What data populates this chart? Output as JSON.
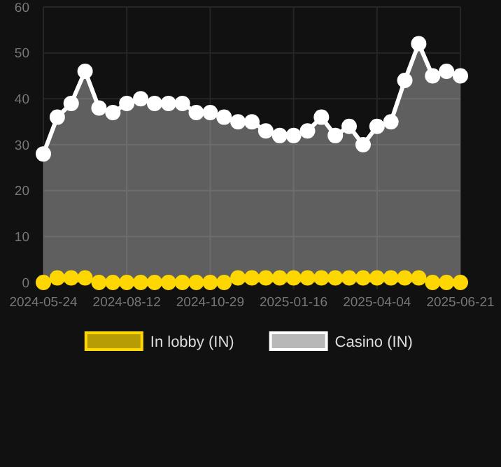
{
  "chart_data": {
    "type": "area",
    "categories": [
      "2024-05-24",
      null,
      null,
      null,
      null,
      null,
      "2024-08-12",
      null,
      null,
      null,
      null,
      null,
      "2024-10-29",
      null,
      null,
      null,
      null,
      null,
      "2025-01-16",
      null,
      null,
      null,
      null,
      null,
      "2025-04-04",
      null,
      null,
      null,
      null,
      null,
      "2025-06-21"
    ],
    "series": [
      {
        "name": "In lobby (IN)",
        "color": "#ffd700",
        "values": [
          0,
          1,
          1,
          1,
          0,
          0,
          0,
          0,
          0,
          0,
          0,
          0,
          0,
          0,
          1,
          1,
          1,
          1,
          1,
          1,
          1,
          1,
          1,
          1,
          1,
          1,
          1,
          1,
          0,
          0,
          0
        ]
      },
      {
        "name": "Casino (IN)",
        "color": "#ffffff",
        "values": [
          28,
          36,
          39,
          46,
          38,
          37,
          39,
          40,
          39,
          39,
          39,
          37,
          37,
          36,
          35,
          35,
          33,
          32,
          32,
          33,
          36,
          32,
          34,
          30,
          34,
          35,
          44,
          52,
          45,
          46,
          45
        ]
      }
    ],
    "ylim": [
      0,
      60
    ],
    "yticks": [
      0,
      10,
      20,
      30,
      40,
      50,
      60
    ],
    "grid": true,
    "legend": "bottom",
    "marker": "circle"
  }
}
